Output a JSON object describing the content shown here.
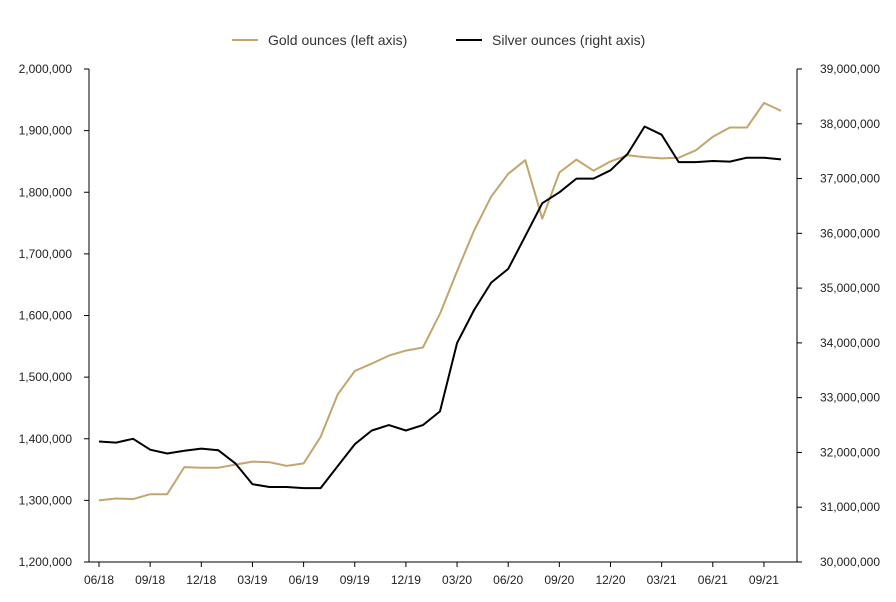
{
  "chart_data": {
    "type": "line",
    "title": "",
    "xlabel": "",
    "ylabel_left": "",
    "ylabel_right": "",
    "x_tick_labels": [
      "06/18",
      "09/18",
      "12/18",
      "03/19",
      "06/19",
      "09/19",
      "12/19",
      "03/20",
      "06/20",
      "09/20",
      "12/20",
      "03/21",
      "06/21",
      "09/21"
    ],
    "x": [
      "06/18",
      "07/18",
      "08/18",
      "09/18",
      "10/18",
      "11/18",
      "12/18",
      "01/19",
      "02/19",
      "03/19",
      "04/19",
      "05/19",
      "06/19",
      "07/19",
      "08/19",
      "09/19",
      "10/19",
      "11/19",
      "12/19",
      "01/20",
      "02/20",
      "03/20",
      "04/20",
      "05/20",
      "06/20",
      "07/20",
      "08/20",
      "09/20",
      "10/20",
      "11/20",
      "12/20",
      "01/21",
      "02/21",
      "03/21",
      "04/21",
      "05/21",
      "06/21",
      "07/21",
      "08/21",
      "09/21",
      "10/21"
    ],
    "y_left_ticks": [
      "1,200,000",
      "1,300,000",
      "1,400,000",
      "1,500,000",
      "1,600,000",
      "1,700,000",
      "1,800,000",
      "1,900,000",
      "2,000,000"
    ],
    "y_right_ticks": [
      "30,000,000",
      "31,000,000",
      "32,000,000",
      "33,000,000",
      "34,000,000",
      "35,000,000",
      "36,000,000",
      "37,000,000",
      "38,000,000",
      "39,000,000"
    ],
    "ylim_left": [
      1200000,
      2000000
    ],
    "ylim_right": [
      30000000,
      39000000
    ],
    "legend_position": "top-center",
    "grid": false,
    "series": [
      {
        "name": "Gold ounces (left axis)",
        "axis": "left",
        "color": "#c2a66e",
        "values": [
          1300000,
          1303000,
          1302000,
          1310000,
          1310000,
          1354000,
          1353000,
          1353000,
          1358000,
          1363000,
          1362000,
          1356000,
          1360000,
          1403000,
          1472000,
          1510000,
          1522000,
          1535000,
          1543000,
          1548000,
          1603000,
          1672000,
          1738000,
          1793000,
          1830000,
          1852000,
          1757000,
          1832000,
          1853000,
          1835000,
          1850000,
          1860000,
          1857000,
          1855000,
          1856000,
          1868000,
          1890000,
          1905000,
          1905000,
          1945000,
          1932000
        ]
      },
      {
        "name": "Silver ounces (right axis)",
        "axis": "right",
        "color": "#000000",
        "values": [
          32200000,
          32180000,
          32250000,
          32050000,
          31980000,
          32030000,
          32070000,
          32040000,
          31800000,
          31420000,
          31370000,
          31370000,
          31350000,
          31350000,
          31750000,
          32150000,
          32400000,
          32500000,
          32400000,
          32500000,
          32750000,
          34000000,
          34600000,
          35100000,
          35350000,
          35950000,
          36550000,
          36750000,
          37000000,
          37000000,
          37150000,
          37450000,
          37950000,
          37800000,
          37300000,
          37300000,
          37320000,
          37310000,
          37380000,
          37380000,
          37350000
        ]
      }
    ]
  }
}
